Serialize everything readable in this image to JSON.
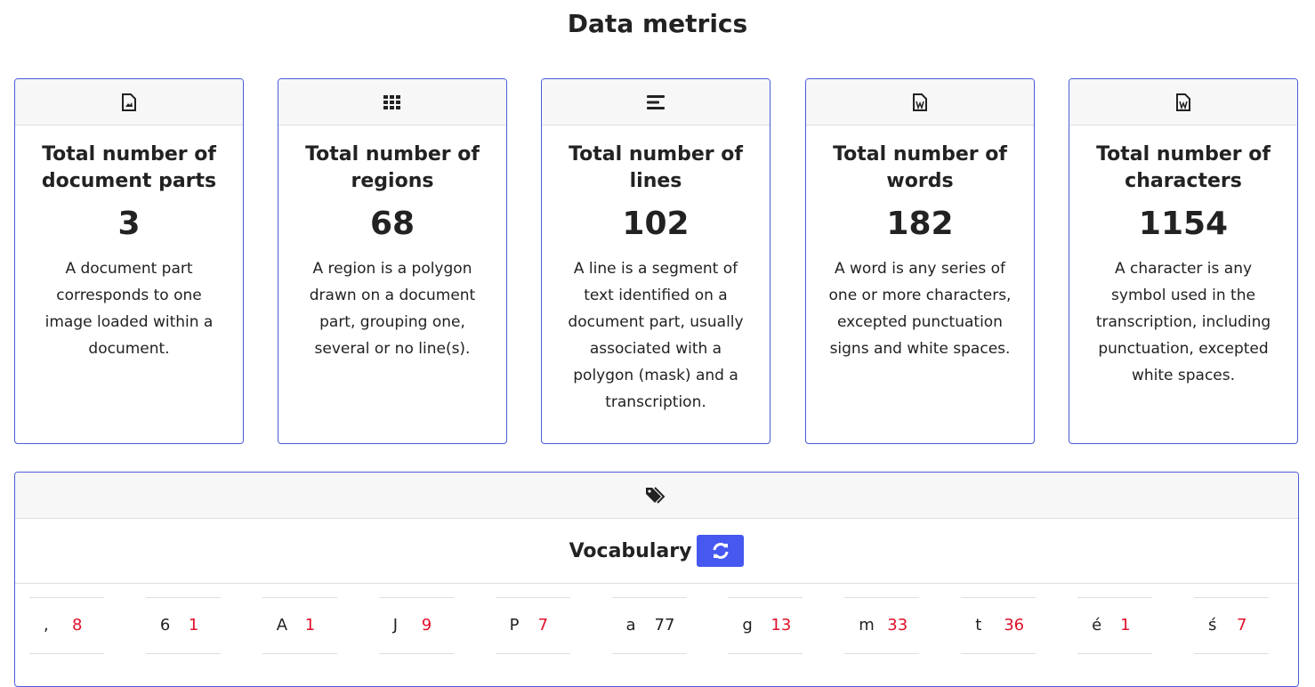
{
  "header": {
    "title": "Data metrics"
  },
  "metrics": [
    {
      "title": "Total number of document parts",
      "value": "3",
      "description": "A document part corresponds to one image loaded within a document."
    },
    {
      "title": "Total number of regions",
      "value": "68",
      "description": "A region is a polygon drawn on a document part, grouping one, several or no line(s)."
    },
    {
      "title": "Total number of lines",
      "value": "102",
      "description": "A line is a segment of text identified on a document part, usually associated with a polygon (mask) and a transcription."
    },
    {
      "title": "Total number of words",
      "value": "182",
      "description": "A word is any series of one or more characters, excepted punctuation signs and white spaces."
    },
    {
      "title": "Total number of characters",
      "value": "1154",
      "description": "A character is any symbol used in the transcription, including punctuation, excepted white spaces."
    }
  ],
  "vocabulary": {
    "title": "Vocabulary",
    "items": [
      {
        "char": ",",
        "count": 8
      },
      {
        "char": "6",
        "count": 1
      },
      {
        "char": "A",
        "count": 1
      },
      {
        "char": "J",
        "count": 9
      },
      {
        "char": "P",
        "count": 7
      },
      {
        "char": "a",
        "count": 77
      },
      {
        "char": "g",
        "count": 13
      },
      {
        "char": "m",
        "count": 33
      },
      {
        "char": "t",
        "count": 36
      },
      {
        "char": "é",
        "count": 1
      },
      {
        "char": "ś",
        "count": 7
      }
    ]
  }
}
